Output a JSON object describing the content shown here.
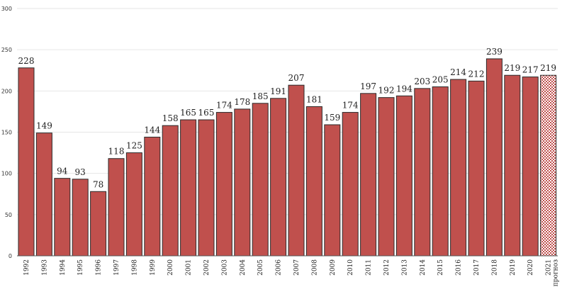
{
  "chart_data": {
    "type": "bar",
    "categories": [
      "1992",
      "1993",
      "1994",
      "1995",
      "1996",
      "1997",
      "1998",
      "1999",
      "2000",
      "2001",
      "2002",
      "2003",
      "2004",
      "2005",
      "2006",
      "2007",
      "2008",
      "2009",
      "2010",
      "2011",
      "2012",
      "2013",
      "2014",
      "2015",
      "2016",
      "2017",
      "2018",
      "2019",
      "2020",
      "2021 прогноз"
    ],
    "values": [
      228,
      149,
      94,
      93,
      78,
      118,
      125,
      144,
      158,
      165,
      165,
      174,
      178,
      185,
      191,
      207,
      181,
      159,
      174,
      197,
      192,
      194,
      203,
      205,
      214,
      212,
      239,
      219,
      217,
      219
    ],
    "forecast_flags": [
      false,
      false,
      false,
      false,
      false,
      false,
      false,
      false,
      false,
      false,
      false,
      false,
      false,
      false,
      false,
      false,
      false,
      false,
      false,
      false,
      false,
      false,
      false,
      false,
      false,
      false,
      false,
      false,
      false,
      true
    ],
    "ylim": [
      0,
      300
    ],
    "yticks": [
      0,
      50,
      100,
      150,
      200,
      250,
      300
    ],
    "grid": "horizontal",
    "bar_color": "#c0504d",
    "bar_edge_color": "#2b2b2b",
    "forecast_fill": "checkered"
  }
}
